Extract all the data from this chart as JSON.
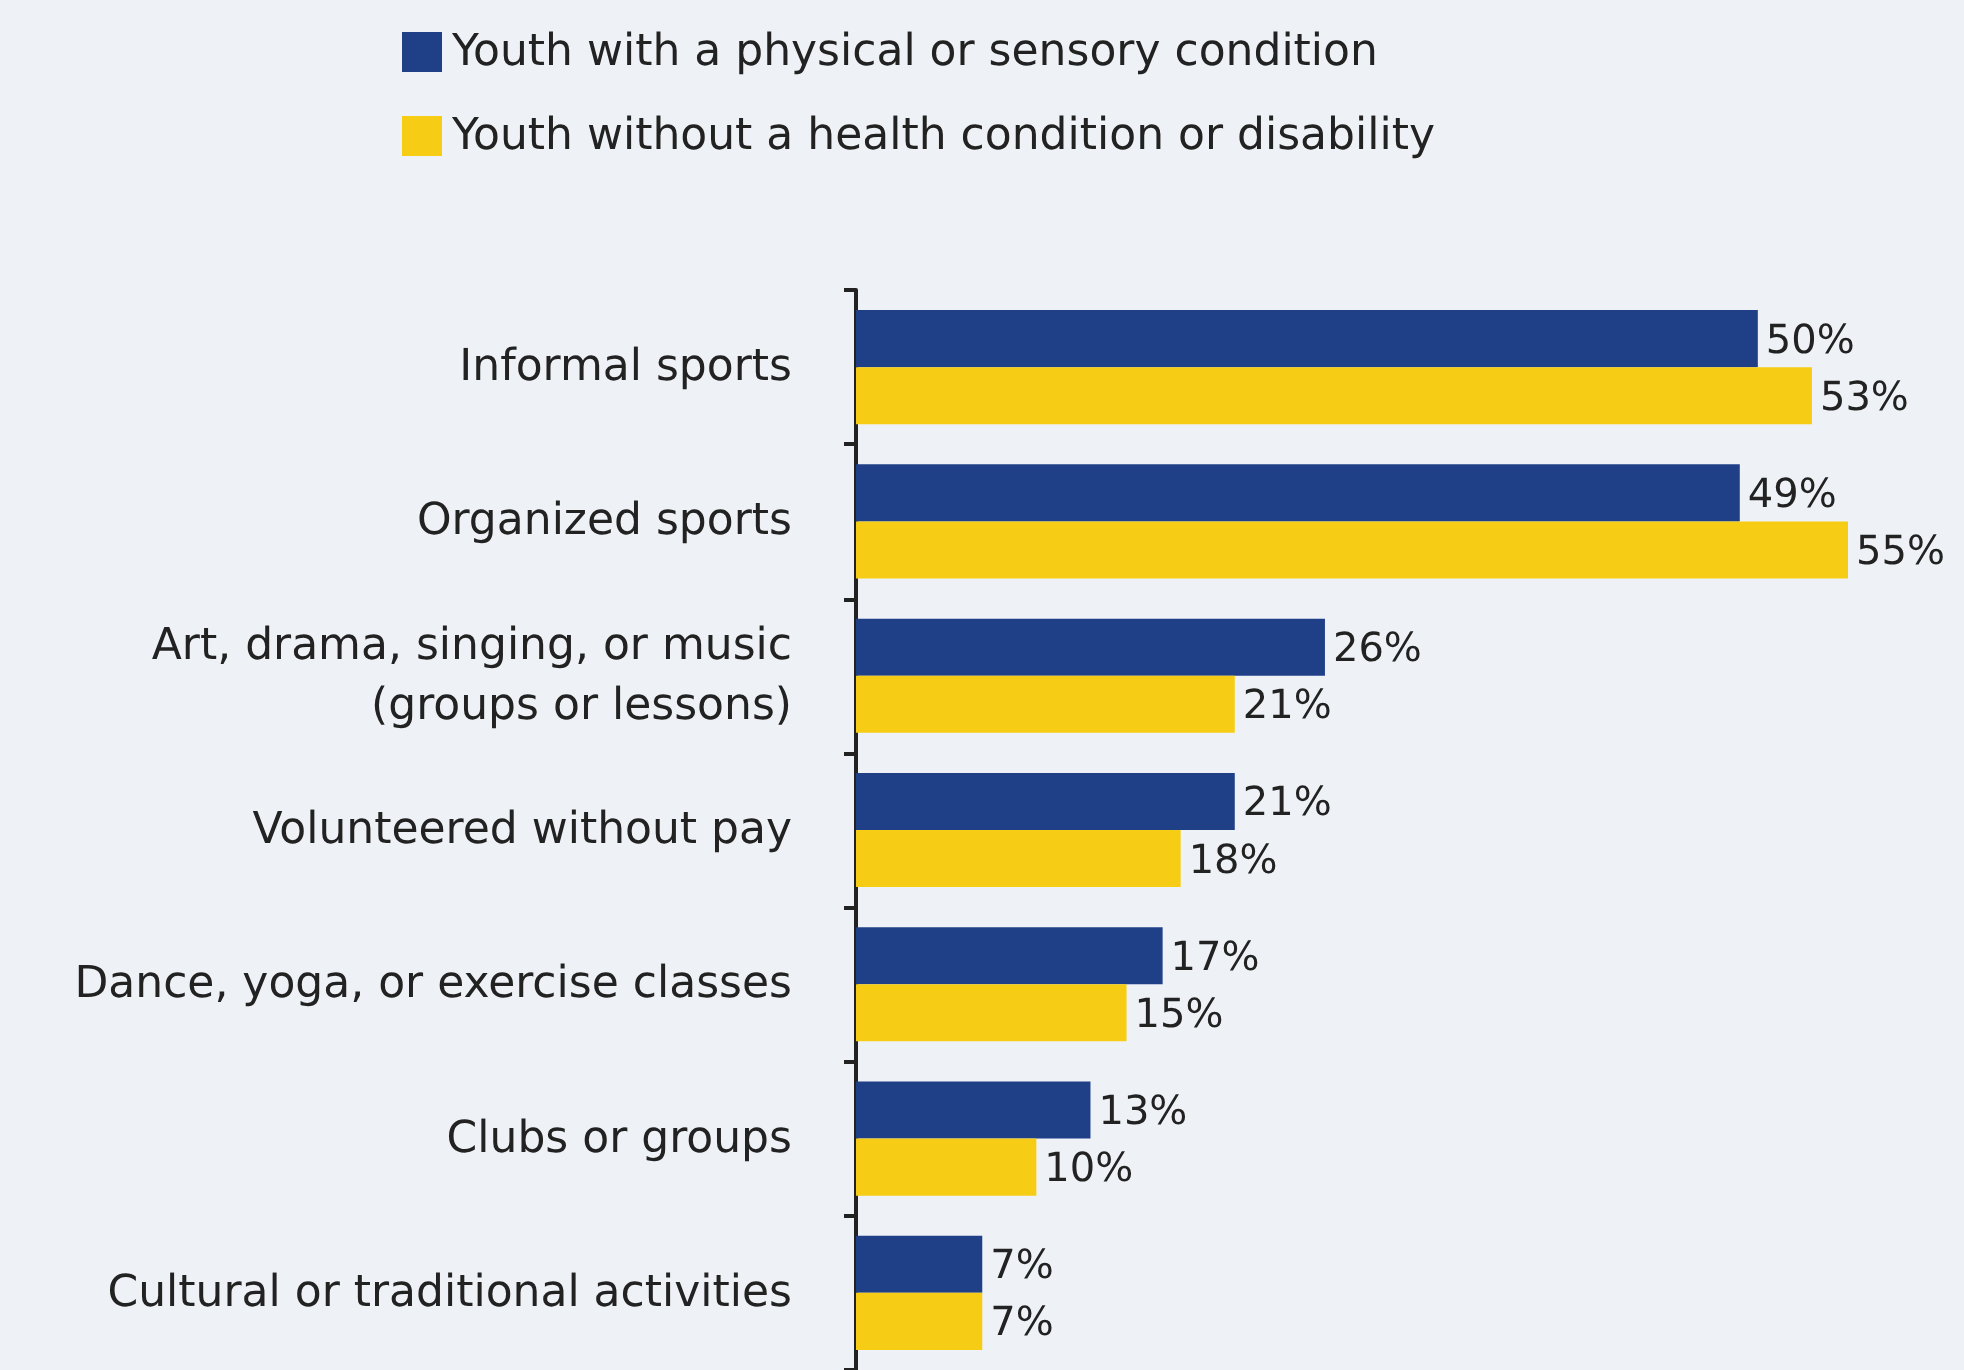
{
  "chart_data": {
    "type": "bar",
    "orientation": "horizontal",
    "categories": [
      "Informal sports",
      "Organized sports",
      "Art, drama, singing, or music\n(groups or lessons)",
      "Volunteered without pay",
      "Dance, yoga, or exercise classes",
      "Clubs or groups",
      "Cultural or traditional activities"
    ],
    "series": [
      {
        "name": "Youth with a physical or sensory condition",
        "color": "#1f3f87",
        "values": [
          50,
          49,
          26,
          21,
          17,
          13,
          7
        ],
        "value_labels": [
          "50%",
          "49%",
          "26%",
          "21%",
          "17%",
          "13%",
          "7%"
        ]
      },
      {
        "name": "Youth without a health condition or disability",
        "color": "#f6cd14",
        "values": [
          53,
          55,
          21,
          18,
          15,
          10,
          7
        ],
        "value_labels": [
          "53%",
          "55%",
          "21%",
          "18%",
          "15%",
          "10%",
          "7%"
        ]
      }
    ],
    "legend": "top",
    "tick_labels": "y"
  }
}
